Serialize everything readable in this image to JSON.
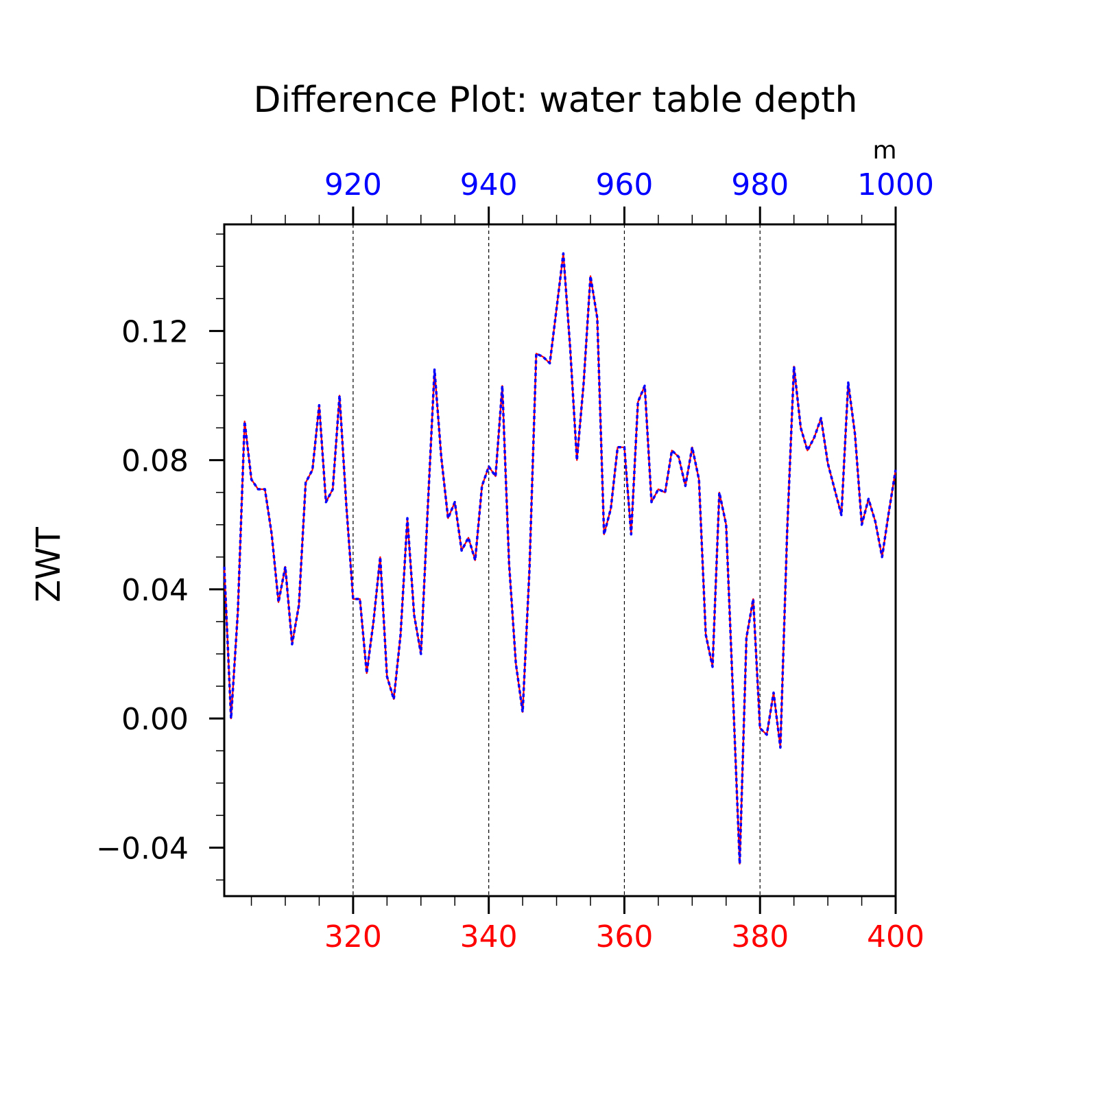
{
  "chart_data": {
    "type": "line",
    "title": "Difference Plot: water table depth",
    "ylabel": "ZWT",
    "top_axis_unit": "m",
    "ylim": [
      -0.055,
      0.153
    ],
    "yticks": [
      -0.04,
      0.0,
      0.04,
      0.08,
      0.12
    ],
    "ytick_labels": [
      "−0.04",
      "0.00",
      "0.04",
      "0.08",
      "0.12"
    ],
    "y_minor_step": 0.01,
    "bottom_axis": {
      "color": "#ff0000",
      "range": [
        301,
        400
      ],
      "ticks": [
        320,
        340,
        360,
        380,
        400
      ],
      "tick_labels": [
        "320",
        "340",
        "360",
        "380",
        "400"
      ]
    },
    "top_axis": {
      "color": "#0000ff",
      "range": [
        901,
        1000
      ],
      "ticks": [
        920,
        940,
        960,
        980,
        1000
      ],
      "tick_labels": [
        "920",
        "940",
        "960",
        "980",
        "1000"
      ]
    },
    "grid": "vertical dashed lines at major x ticks",
    "x": [
      301,
      302,
      303,
      304,
      305,
      306,
      307,
      308,
      309,
      310,
      311,
      312,
      313,
      314,
      315,
      316,
      317,
      318,
      319,
      320,
      321,
      322,
      323,
      324,
      325,
      326,
      327,
      328,
      329,
      330,
      331,
      332,
      333,
      334,
      335,
      336,
      337,
      338,
      339,
      340,
      341,
      342,
      343,
      344,
      345,
      346,
      347,
      348,
      349,
      350,
      351,
      352,
      353,
      354,
      355,
      356,
      357,
      358,
      359,
      360,
      361,
      362,
      363,
      364,
      365,
      366,
      367,
      368,
      369,
      370,
      371,
      372,
      373,
      374,
      375,
      376,
      377,
      378,
      379,
      380,
      381,
      382,
      383,
      384,
      385,
      386,
      387,
      388,
      389,
      390,
      391,
      392,
      393,
      394,
      395,
      396,
      397,
      398,
      399,
      400
    ],
    "series": [
      {
        "color": "#ff0000",
        "style": "solid",
        "values": [
          0.047,
          0.0,
          0.033,
          0.092,
          0.074,
          0.071,
          0.071,
          0.057,
          0.036,
          0.047,
          0.023,
          0.035,
          0.073,
          0.077,
          0.097,
          0.067,
          0.071,
          0.1,
          0.066,
          0.037,
          0.037,
          0.014,
          0.03,
          0.05,
          0.013,
          0.006,
          0.026,
          0.062,
          0.032,
          0.02,
          0.065,
          0.108,
          0.081,
          0.062,
          0.067,
          0.052,
          0.056,
          0.049,
          0.072,
          0.078,
          0.075,
          0.103,
          0.048,
          0.017,
          0.002,
          0.046,
          0.113,
          0.112,
          0.11,
          0.127,
          0.144,
          0.115,
          0.08,
          0.104,
          0.137,
          0.124,
          0.057,
          0.065,
          0.084,
          0.084,
          0.057,
          0.098,
          0.103,
          0.067,
          0.071,
          0.07,
          0.083,
          0.081,
          0.072,
          0.084,
          0.074,
          0.026,
          0.016,
          0.07,
          0.06,
          0.008,
          -0.045,
          0.025,
          0.037,
          -0.003,
          -0.005,
          0.008,
          -0.009,
          0.058,
          0.109,
          0.09,
          0.083,
          0.087,
          0.093,
          0.079,
          0.071,
          0.063,
          0.104,
          0.088,
          0.06,
          0.068,
          0.061,
          0.05,
          0.064,
          0.077
        ]
      },
      {
        "color": "#0000ff",
        "style": "dashed",
        "values": [
          0.047,
          0.0,
          0.033,
          0.092,
          0.074,
          0.071,
          0.071,
          0.057,
          0.036,
          0.047,
          0.023,
          0.035,
          0.073,
          0.077,
          0.097,
          0.067,
          0.071,
          0.1,
          0.066,
          0.037,
          0.037,
          0.014,
          0.03,
          0.05,
          0.013,
          0.006,
          0.026,
          0.062,
          0.032,
          0.02,
          0.065,
          0.108,
          0.081,
          0.062,
          0.067,
          0.052,
          0.056,
          0.049,
          0.072,
          0.078,
          0.075,
          0.103,
          0.048,
          0.017,
          0.002,
          0.046,
          0.113,
          0.112,
          0.11,
          0.127,
          0.144,
          0.115,
          0.08,
          0.104,
          0.137,
          0.124,
          0.057,
          0.065,
          0.084,
          0.084,
          0.057,
          0.098,
          0.103,
          0.067,
          0.071,
          0.07,
          0.083,
          0.081,
          0.072,
          0.084,
          0.074,
          0.026,
          0.016,
          0.07,
          0.06,
          0.008,
          -0.045,
          0.025,
          0.037,
          -0.003,
          -0.005,
          0.008,
          -0.009,
          0.058,
          0.109,
          0.09,
          0.083,
          0.087,
          0.093,
          0.079,
          0.071,
          0.063,
          0.104,
          0.088,
          0.06,
          0.068,
          0.061,
          0.05,
          0.064,
          0.077
        ]
      }
    ]
  }
}
